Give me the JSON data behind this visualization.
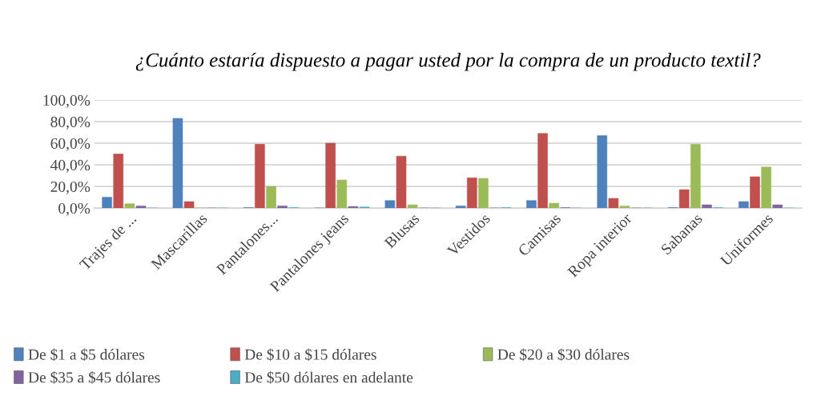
{
  "chart_data": {
    "type": "bar",
    "title": "¿Cuánto estaría dispuesto a pagar usted por la compra de un producto textil?",
    "categories": [
      "Trajes de ...",
      "Mascarillas",
      "Pantalones...",
      "Pantalones jeans",
      "Blusas",
      "Vestidos",
      "Camisas",
      "Ropa interior",
      "Sabanas",
      "Uniformes"
    ],
    "series": [
      {
        "name": "De $1 a $5 dólares",
        "color": "#4f81bd",
        "values": [
          10,
          83,
          0.5,
          0,
          7,
          2,
          7,
          67,
          0.5,
          6
        ]
      },
      {
        "name": "De $10 a $15 dólares",
        "color": "#c0504d",
        "values": [
          50,
          6,
          59,
          60,
          48,
          28,
          69,
          9,
          17,
          29
        ]
      },
      {
        "name": "De $20 a $30 dólares",
        "color": "#9bbb59",
        "values": [
          4,
          0,
          20,
          26,
          3,
          27.5,
          4.5,
          2,
          59,
          38
        ]
      },
      {
        "name": "De $35 a $45 dólares",
        "color": "#8064a2",
        "values": [
          2,
          0,
          2,
          1.5,
          0,
          0,
          0.5,
          0,
          3,
          3
        ]
      },
      {
        "name": "De $50 dólares en adelante",
        "color": "#4bacc6",
        "values": [
          0,
          0,
          0.5,
          1,
          0,
          0.5,
          0,
          0,
          0.5,
          0
        ]
      }
    ],
    "ylim": [
      0,
      100
    ],
    "yticks": [
      {
        "value": 0,
        "label": "0,0%"
      },
      {
        "value": 20,
        "label": "20,0%"
      },
      {
        "value": 40,
        "label": "40,0%"
      },
      {
        "value": 60,
        "label": "60,0%"
      },
      {
        "value": 80,
        "label": "80,0%"
      },
      {
        "value": 100,
        "label": "100,0%"
      }
    ],
    "grid": "y",
    "legend": "bottom"
  }
}
